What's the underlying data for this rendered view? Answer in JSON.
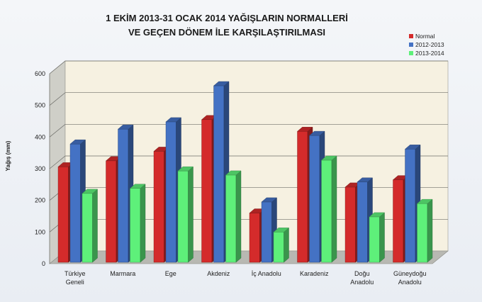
{
  "chart_data": {
    "type": "bar",
    "title_lines": [
      "1 EKİM 2013-31 OCAK 2014 YAĞIŞLARIN NORMALLERİ",
      "VE GEÇEN DÖNEM İLE KARŞILAŞTIRILMASI"
    ],
    "ylabel": "Yağış (mm)",
    "xlabel": "",
    "ylim": [
      0,
      600
    ],
    "yticks": [
      0,
      100,
      200,
      300,
      400,
      500,
      600
    ],
    "grid": true,
    "legend_position": "top-right",
    "categories": [
      [
        "Türkiye",
        "Geneli"
      ],
      [
        "Marmara"
      ],
      [
        "Ege"
      ],
      [
        "Akdeniz"
      ],
      [
        "İç Anadolu"
      ],
      [
        "Karadeniz"
      ],
      [
        "Doğu",
        "Anadolu"
      ],
      [
        "Güneydoğu",
        "Anadolu"
      ]
    ],
    "series": [
      {
        "name": "Normal",
        "color": "#d42b2b",
        "values": [
          306,
          325,
          355,
          455,
          160,
          418,
          242,
          265
        ]
      },
      {
        "name": "2012-2013",
        "color": "#4472c4",
        "values": [
          378,
          425,
          448,
          562,
          195,
          405,
          258,
          362
        ]
      },
      {
        "name": "2013-2014",
        "color": "#5ef07a",
        "values": [
          222,
          238,
          293,
          280,
          100,
          327,
          148,
          190
        ]
      }
    ]
  }
}
